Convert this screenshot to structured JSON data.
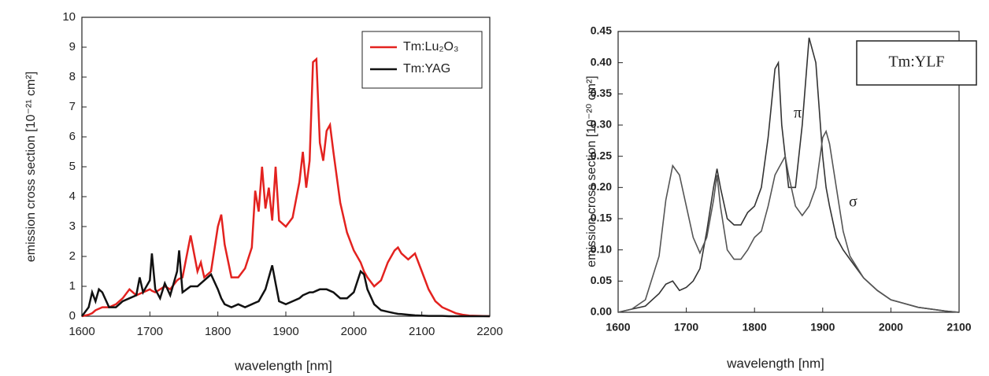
{
  "chart_data": [
    {
      "type": "line",
      "x_label": "wavelength [nm]",
      "y_label": "emission cross section [10⁻²¹ cm²]",
      "x": [
        1600,
        1610,
        1615,
        1620,
        1625,
        1630,
        1640,
        1650,
        1660,
        1670,
        1680,
        1685,
        1690,
        1700,
        1703,
        1708,
        1715,
        1722,
        1730,
        1740,
        1743,
        1748,
        1760,
        1770,
        1775,
        1780,
        1790,
        1800,
        1805,
        1810,
        1820,
        1830,
        1840,
        1850,
        1855,
        1860,
        1865,
        1870,
        1875,
        1880,
        1885,
        1890,
        1900,
        1910,
        1920,
        1925,
        1930,
        1935,
        1940,
        1945,
        1950,
        1955,
        1960,
        1965,
        1970,
        1980,
        1990,
        2000,
        2010,
        2015,
        2020,
        2030,
        2040,
        2050,
        2060,
        2065,
        2070,
        2080,
        2090,
        2100,
        2110,
        2120,
        2130,
        2140,
        2150,
        2160,
        2170,
        2200
      ],
      "series": [
        {
          "name": "Tm:Lu₂O₃",
          "color": "#e3221f",
          "values": [
            0,
            0.05,
            0.1,
            0.2,
            0.25,
            0.3,
            0.3,
            0.4,
            0.6,
            0.9,
            0.7,
            0.75,
            0.8,
            0.9,
            0.85,
            0.8,
            0.9,
            1.0,
            0.9,
            1.2,
            1.25,
            1.3,
            2.7,
            1.5,
            1.8,
            1.3,
            1.5,
            3.0,
            3.4,
            2.4,
            1.3,
            1.3,
            1.6,
            2.3,
            4.2,
            3.5,
            5.0,
            3.6,
            4.3,
            3.2,
            5.0,
            3.2,
            3.0,
            3.3,
            4.5,
            5.5,
            4.3,
            5.2,
            8.5,
            8.6,
            5.8,
            5.2,
            6.2,
            6.4,
            5.5,
            3.8,
            2.8,
            2.2,
            1.8,
            1.5,
            1.3,
            1.0,
            1.2,
            1.8,
            2.2,
            2.3,
            2.1,
            1.9,
            2.1,
            1.5,
            0.9,
            0.5,
            0.3,
            0.2,
            0.1,
            0.05,
            0.02,
            0
          ]
        },
        {
          "name": "Tm:YAG",
          "color": "#111111",
          "values": [
            0,
            0.3,
            0.8,
            0.5,
            0.9,
            0.8,
            0.3,
            0.3,
            0.5,
            0.6,
            0.7,
            1.3,
            0.8,
            1.2,
            2.1,
            0.9,
            0.6,
            1.1,
            0.7,
            1.5,
            2.2,
            0.8,
            1.0,
            1.0,
            1.1,
            1.2,
            1.4,
            0.9,
            0.6,
            0.4,
            0.3,
            0.4,
            0.3,
            0.4,
            0.45,
            0.5,
            0.7,
            0.9,
            1.3,
            1.7,
            1.1,
            0.5,
            0.4,
            0.5,
            0.6,
            0.7,
            0.75,
            0.8,
            0.8,
            0.85,
            0.9,
            0.9,
            0.9,
            0.85,
            0.8,
            0.6,
            0.6,
            0.8,
            1.5,
            1.4,
            0.9,
            0.4,
            0.2,
            0.15,
            0.1,
            0.08,
            0.07,
            0.05,
            0.03,
            0.02,
            0.01,
            0.01,
            0.01,
            0,
            0,
            0,
            0,
            0
          ]
        }
      ],
      "xlim": [
        1600,
        2200
      ],
      "xticks": [
        1600,
        1700,
        1800,
        1900,
        2000,
        2100,
        2200
      ],
      "ylim": [
        0,
        10
      ],
      "yticks": [
        0,
        1,
        2,
        3,
        4,
        5,
        6,
        7,
        8,
        9,
        10
      ],
      "legend": "upper right"
    },
    {
      "type": "line",
      "x_label": "wavelength [nm]",
      "y_label": "emission cross section [10⁻²⁰ cm²]",
      "annotation": "Tm:YLF",
      "x": [
        1600,
        1620,
        1640,
        1660,
        1670,
        1680,
        1690,
        1700,
        1710,
        1720,
        1730,
        1740,
        1745,
        1750,
        1760,
        1770,
        1780,
        1790,
        1800,
        1810,
        1820,
        1830,
        1835,
        1840,
        1845,
        1850,
        1860,
        1870,
        1880,
        1890,
        1900,
        1905,
        1910,
        1920,
        1930,
        1940,
        1960,
        1980,
        2000,
        2040,
        2080,
        2100
      ],
      "series": [
        {
          "name": "π",
          "color": "#333333",
          "values": [
            0,
            0.005,
            0.01,
            0.03,
            0.045,
            0.05,
            0.035,
            0.04,
            0.05,
            0.07,
            0.13,
            0.2,
            0.23,
            0.2,
            0.15,
            0.14,
            0.14,
            0.16,
            0.17,
            0.2,
            0.28,
            0.39,
            0.4,
            0.3,
            0.25,
            0.2,
            0.2,
            0.3,
            0.44,
            0.4,
            0.25,
            0.2,
            0.17,
            0.12,
            0.1,
            0.085,
            0.055,
            0.035,
            0.02,
            0.008,
            0.002,
            0
          ]
        },
        {
          "name": "σ",
          "color": "#555555",
          "values": [
            0,
            0.005,
            0.02,
            0.09,
            0.18,
            0.235,
            0.22,
            0.17,
            0.12,
            0.095,
            0.12,
            0.18,
            0.22,
            0.17,
            0.1,
            0.085,
            0.085,
            0.1,
            0.12,
            0.13,
            0.17,
            0.22,
            0.23,
            0.24,
            0.25,
            0.22,
            0.17,
            0.155,
            0.17,
            0.2,
            0.28,
            0.29,
            0.27,
            0.2,
            0.13,
            0.09,
            0.055,
            0.035,
            0.02,
            0.008,
            0.002,
            0
          ]
        }
      ],
      "xlim": [
        1600,
        2100
      ],
      "xticks": [
        1600,
        1700,
        1800,
        1900,
        2000,
        2100
      ],
      "ylim": [
        0,
        0.45
      ],
      "yticks": [
        {
          "value": 0,
          "label": "0.00"
        },
        {
          "value": 0.05,
          "label": "0.05"
        },
        {
          "value": 0.1,
          "label": "0.10"
        },
        {
          "value": 0.15,
          "label": "0.15"
        },
        {
          "value": 0.2,
          "label": "0.20"
        },
        {
          "value": 0.25,
          "label": "0.25"
        },
        {
          "value": 0.3,
          "label": "0.30"
        },
        {
          "value": 0.35,
          "label": "0.35"
        },
        {
          "value": 0.4,
          "label": "0.40"
        },
        {
          "value": 0.45,
          "label": "0.45"
        }
      ]
    }
  ]
}
